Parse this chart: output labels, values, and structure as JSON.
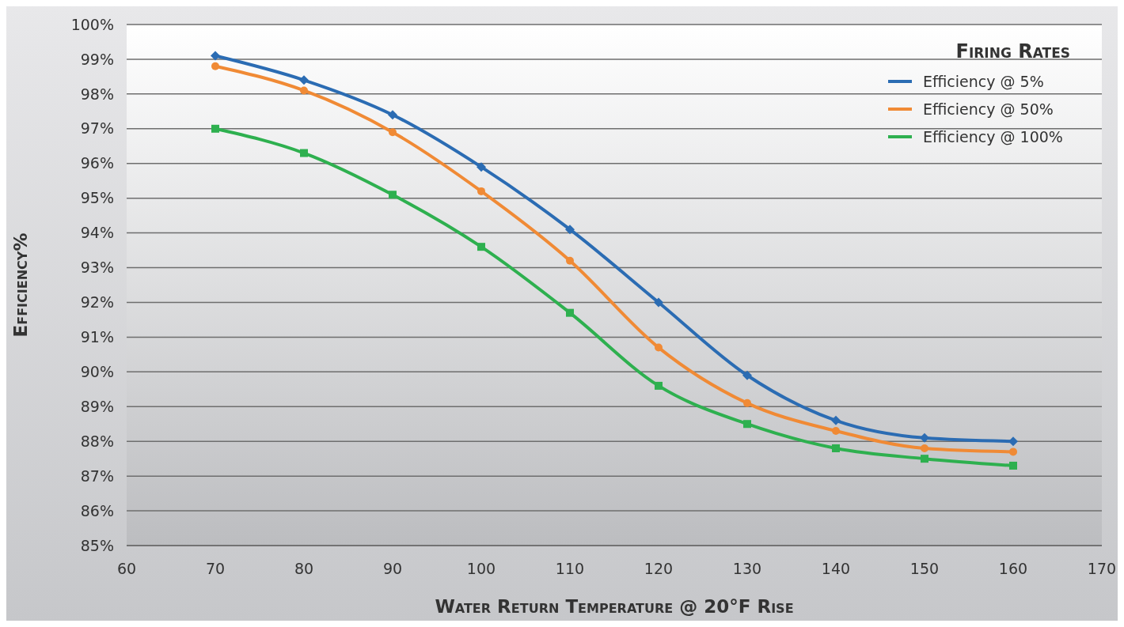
{
  "chart_data": {
    "type": "line",
    "xlabel": "Water Return Temperature @ 20°F Rise",
    "ylabel": "Efficiency%",
    "legend_title": "Firing Rates",
    "legend": "top right",
    "grid": "y",
    "x": [
      70,
      80,
      90,
      100,
      110,
      120,
      130,
      140,
      150,
      160
    ],
    "xlim": [
      60,
      170
    ],
    "xticks": [
      60,
      70,
      80,
      90,
      100,
      110,
      120,
      130,
      140,
      150,
      160,
      170
    ],
    "ylim": [
      85,
      100
    ],
    "yticks": [
      {
        "value": 85,
        "label": "85%"
      },
      {
        "value": 86,
        "label": "86%"
      },
      {
        "value": 87,
        "label": "87%"
      },
      {
        "value": 88,
        "label": "88%"
      },
      {
        "value": 89,
        "label": "89%"
      },
      {
        "value": 90,
        "label": "90%"
      },
      {
        "value": 91,
        "label": "91%"
      },
      {
        "value": 92,
        "label": "92%"
      },
      {
        "value": 93,
        "label": "93%"
      },
      {
        "value": 94,
        "label": "94%"
      },
      {
        "value": 95,
        "label": "95%"
      },
      {
        "value": 96,
        "label": "96%"
      },
      {
        "value": 97,
        "label": "97%"
      },
      {
        "value": 98,
        "label": "98%"
      },
      {
        "value": 99,
        "label": "99%"
      },
      {
        "value": 100,
        "label": "100%"
      }
    ],
    "series": [
      {
        "name": "Efficiency @ 5%",
        "color": "#2b6cb3",
        "marker": "diamond",
        "values": [
          99.1,
          98.4,
          97.4,
          95.9,
          94.1,
          92.0,
          89.9,
          88.6,
          88.1,
          88.0
        ]
      },
      {
        "name": "Efficiency @ 50%",
        "color": "#f08a35",
        "marker": "circle",
        "values": [
          98.8,
          98.1,
          96.9,
          95.2,
          93.2,
          90.7,
          89.1,
          88.3,
          87.8,
          87.7
        ]
      },
      {
        "name": "Efficiency @ 100%",
        "color": "#2eb04f",
        "marker": "square",
        "values": [
          97.0,
          96.3,
          95.1,
          93.6,
          91.7,
          89.6,
          88.5,
          87.8,
          87.5,
          87.3
        ]
      }
    ]
  }
}
